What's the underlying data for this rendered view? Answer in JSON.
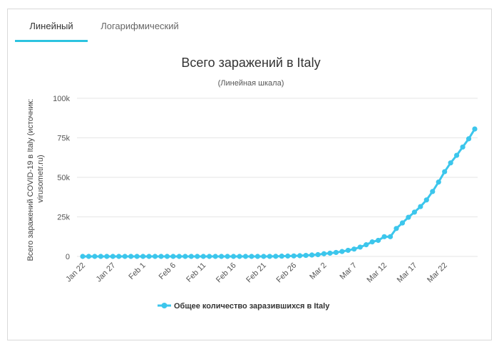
{
  "tabs": [
    {
      "label": "Линейный",
      "active": true
    },
    {
      "label": "Логарифмический",
      "active": false
    }
  ],
  "chart_data": {
    "type": "line",
    "title": "Всего заражений в Italy",
    "subtitle": "(Линейная шкала)",
    "ylabel_lines": [
      "Всего заражений COVID-19 в Italy (источник:",
      "virusometr.ru)"
    ],
    "xlabel": "",
    "ylim": [
      0,
      100000
    ],
    "y_ticks": [
      {
        "value": 0,
        "label": "0"
      },
      {
        "value": 25000,
        "label": "25k"
      },
      {
        "value": 50000,
        "label": "50k"
      },
      {
        "value": 75000,
        "label": "75k"
      },
      {
        "value": 100000,
        "label": "100k"
      }
    ],
    "x_ticks": [
      {
        "index": 0,
        "label": "Jan 22"
      },
      {
        "index": 5,
        "label": "Jan 27"
      },
      {
        "index": 10,
        "label": "Feb 1"
      },
      {
        "index": 15,
        "label": "Feb 6"
      },
      {
        "index": 20,
        "label": "Feb 11"
      },
      {
        "index": 25,
        "label": "Feb 16"
      },
      {
        "index": 30,
        "label": "Feb 21"
      },
      {
        "index": 35,
        "label": "Feb 26"
      },
      {
        "index": 40,
        "label": "Mar 2"
      },
      {
        "index": 45,
        "label": "Mar 7"
      },
      {
        "index": 50,
        "label": "Mar 12"
      },
      {
        "index": 55,
        "label": "Mar 17"
      },
      {
        "index": 60,
        "label": "Mar 22"
      }
    ],
    "grid": "horizontal",
    "legend": "bottom-center",
    "color": "#3cc6ec",
    "series": [
      {
        "name": "Общее количество заразившихся в Italy",
        "values": [
          0,
          0,
          0,
          0,
          0,
          0,
          0,
          0,
          0,
          2,
          2,
          2,
          2,
          2,
          2,
          3,
          3,
          3,
          3,
          3,
          3,
          3,
          3,
          3,
          3,
          3,
          3,
          3,
          3,
          3,
          3,
          20,
          62,
          155,
          229,
          322,
          453,
          655,
          888,
          1128,
          1694,
          2036,
          2502,
          3089,
          3858,
          4636,
          5883,
          7375,
          9172,
          10149,
          12462,
          12462,
          17660,
          21157,
          24747,
          27980,
          31506,
          35713,
          41035,
          47021,
          53578,
          59138,
          63927,
          69176,
          74386,
          80589
        ]
      }
    ]
  }
}
